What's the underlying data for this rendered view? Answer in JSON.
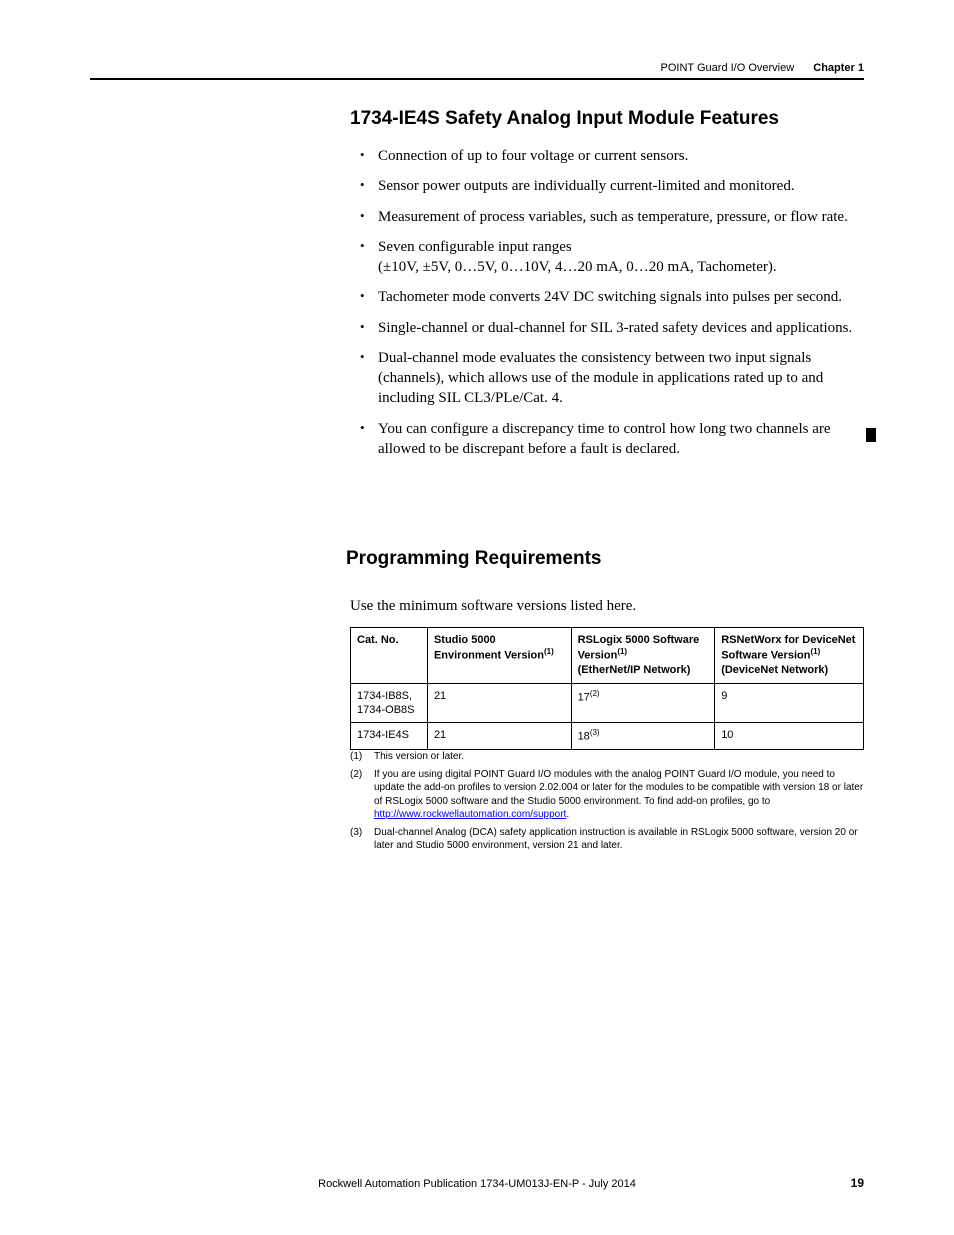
{
  "header": {
    "section": "POINT Guard I/O Overview",
    "chapter": "Chapter 1"
  },
  "section1": {
    "title": "1734-IE4S Safety Analog Input Module Features",
    "bullets": [
      "Connection of up to four voltage or current sensors.",
      "Sensor power outputs are individually current-limited and monitored.",
      "Measurement of process variables, such as temperature, pressure, or flow rate.",
      "Seven configurable input ranges\n(±10V, ±5V, 0…5V, 0…10V, 4…20 mA, 0…20 mA, Tachometer).",
      "Tachometer mode converts 24V DC switching signals into pulses per second.",
      "Single-channel or dual-channel for SIL 3-rated safety devices and applications.",
      "Dual-channel mode evaluates the consistency between two input signals (channels), which allows use of the module in applications rated up to and including SIL CL3/PLe/Cat. 4.",
      "You can configure a discrepancy time to control how long two channels are allowed to be discrepant before a fault is declared."
    ]
  },
  "section2": {
    "title": "Programming Requirements",
    "intro": "Use the minimum software versions listed here."
  },
  "table": {
    "columns": [
      {
        "label": "Cat. No.",
        "sup": ""
      },
      {
        "label": "Studio 5000 Environment Version",
        "sup": "(1)"
      },
      {
        "label": "RSLogix 5000 Software Version",
        "sup": "(1)",
        "sub": "(EtherNet/IP Network)"
      },
      {
        "label": "RSNetWorx for DeviceNet Software Version",
        "sup": "(1)",
        "sub": "(DeviceNet Network)"
      }
    ],
    "rows": [
      {
        "cat": "1734-IB8S, 1734-OB8S",
        "studio": "21",
        "rslogix": "17",
        "rslogix_sup": "(2)",
        "rsnet": "9"
      },
      {
        "cat": "1734-IE4S",
        "studio": "21",
        "rslogix": "18",
        "rslogix_sup": "(3)",
        "rsnet": "10"
      }
    ]
  },
  "footnotes": [
    {
      "num": "(1)",
      "text": "This version or later."
    },
    {
      "num": "(2)",
      "text_pre": "If you are using digital POINT Guard I/O modules with the analog POINT Guard I/O module, you need to update the add-on profiles to version 2.02.004 or later for the modules to be compatible with version 18 or later of RSLogix 5000 software and the Studio 5000 environment. To find add-on profiles, go to ",
      "link": "http://www.rockwellautomation.com/support",
      "text_post": "."
    },
    {
      "num": "(3)",
      "text": "Dual-channel Analog (DCA) safety application instruction is available in RSLogix 5000 software, version 20 or later and Studio 5000 environment, version 21 and later."
    }
  ],
  "footer": {
    "text": "Rockwell Automation Publication 1734-UM013J-EN-P - July 2014",
    "page": "19"
  },
  "colors": {
    "text": "#000000",
    "link": "#0000ee",
    "bg": "#ffffff"
  }
}
